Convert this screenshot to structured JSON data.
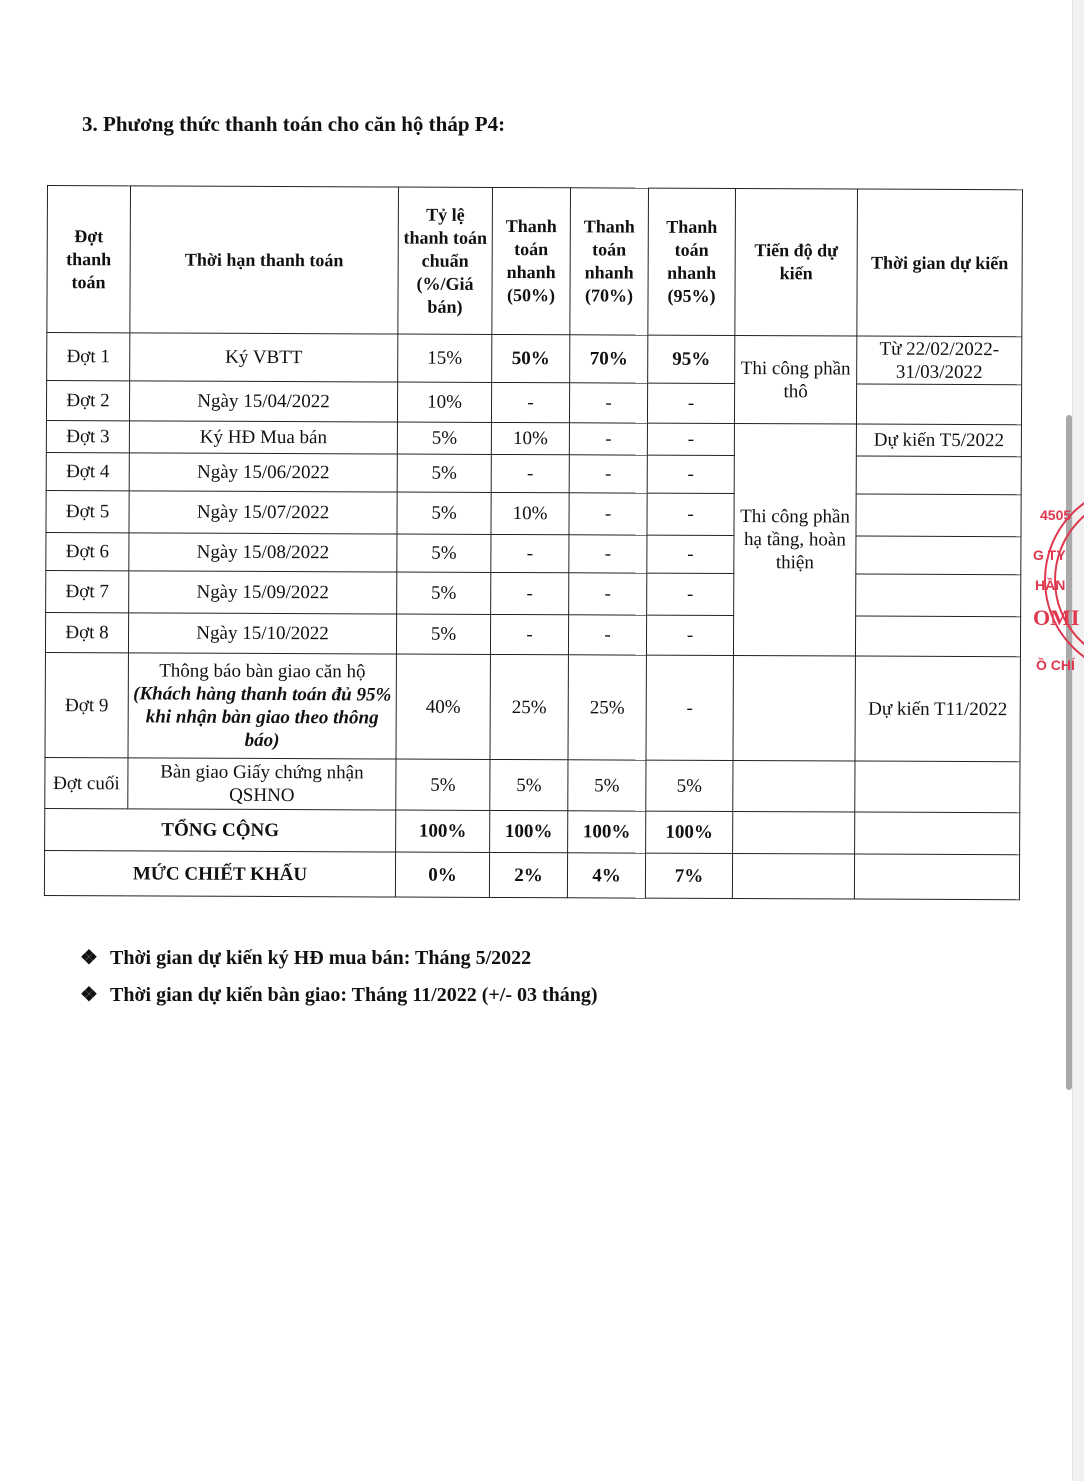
{
  "heading": "3.  Phương thức thanh toán cho căn hộ tháp P4:",
  "table": {
    "headers": [
      "Đợt thanh toán",
      "Thời hạn thanh toán",
      "Tỷ lệ thanh toán chuẩn (%/Giá bán)",
      "Thanh toán nhanh (50%)",
      "Thanh toán nhanh (70%)",
      "Thanh toán nhanh (95%)",
      "Tiến độ dự kiến",
      "Thời gian dự kiến"
    ],
    "rows": [
      {
        "dot": "Đợt 1",
        "han": "Ký VBTT",
        "chuan": "15%",
        "n50": "50%",
        "n70": "70%",
        "n95": "95%",
        "time": "Từ 22/02/2022-31/03/2022"
      },
      {
        "dot": "Đợt 2",
        "han": "Ngày 15/04/2022",
        "chuan": "10%",
        "n50": "-",
        "n70": "-",
        "n95": "-",
        "time": ""
      },
      {
        "dot": "Đợt 3",
        "han": "Ký HĐ Mua bán",
        "chuan": "5%",
        "n50": "10%",
        "n70": "-",
        "n95": "-",
        "time": "Dự kiến T5/2022"
      },
      {
        "dot": "Đợt 4",
        "han": "Ngày 15/06/2022",
        "chuan": "5%",
        "n50": "-",
        "n70": "-",
        "n95": "-",
        "time": ""
      },
      {
        "dot": "Đợt 5",
        "han": "Ngày 15/07/2022",
        "chuan": "5%",
        "n50": "10%",
        "n70": "-",
        "n95": "-",
        "time": ""
      },
      {
        "dot": "Đợt 6",
        "han": "Ngày 15/08/2022",
        "chuan": "5%",
        "n50": "-",
        "n70": "-",
        "n95": "-",
        "time": ""
      },
      {
        "dot": "Đợt 7",
        "han": "Ngày 15/09/2022",
        "chuan": "5%",
        "n50": "-",
        "n70": "-",
        "n95": "-",
        "time": ""
      },
      {
        "dot": "Đợt 8",
        "han": "Ngày 15/10/2022",
        "chuan": "5%",
        "n50": "-",
        "n70": "-",
        "n95": "-",
        "time": ""
      },
      {
        "dot": "Đợt 9",
        "han": "Thông báo bàn giao căn hộ",
        "han_note": "(Khách hàng thanh toán đủ 95% khi nhận bàn giao theo thông báo)",
        "chuan": "40%",
        "n50": "25%",
        "n70": "25%",
        "n95": "-",
        "time": "Dự kiến T11/2022"
      },
      {
        "dot": "Đợt cuối",
        "han": "Bàn giao Giấy chứng nhận QSHNO",
        "chuan": "5%",
        "n50": "5%",
        "n70": "5%",
        "n95": "5%",
        "time": ""
      }
    ],
    "progress": [
      "Thi công phần thô",
      "Thi công phần hạ tầng, hoàn thiện"
    ],
    "total": {
      "label": "TỔNG CỘNG",
      "chuan": "100%",
      "n50": "100%",
      "n70": "100%",
      "n95": "100%"
    },
    "discount": {
      "label": "MỨC CHIẾT KHẤU",
      "chuan": "0%",
      "n50": "2%",
      "n70": "4%",
      "n95": "7%"
    }
  },
  "notes": [
    "Thời gian dự kiến ký HĐ mua bán: Tháng 5/2022",
    "Thời gian dự kiến bàn giao: Tháng 11/2022 (+/- 03 tháng)"
  ],
  "bullet_icon": "diamond-bullet",
  "stamp": {
    "color": "#e0384f",
    "text": [
      "4505",
      "G TY",
      "HẦN",
      "OMI",
      "Ồ CHÍ"
    ]
  }
}
